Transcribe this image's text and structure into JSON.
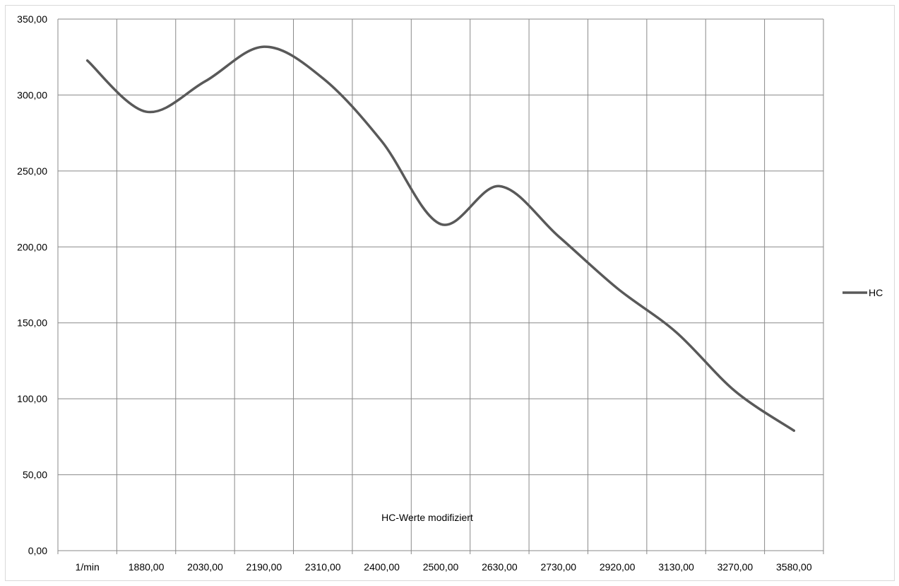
{
  "chart_data": {
    "type": "line",
    "title": "HC-Werte modifiziert",
    "xlabel": "",
    "ylabel": "",
    "categories": [
      "1/min",
      "1880,00",
      "2030,00",
      "2190,00",
      "2310,00",
      "2400,00",
      "2500,00",
      "2630,00",
      "2730,00",
      "2920,00",
      "3130,00",
      "3270,00",
      "3580,00"
    ],
    "series": [
      {
        "name": "HC",
        "values": [
          322.7,
          289,
          309,
          331.8,
          311,
          269.5,
          215,
          240,
          207,
          172.7,
          143.8,
          105,
          79
        ],
        "color": "#595959",
        "smooth": true
      }
    ],
    "ylim": [
      0,
      350
    ],
    "yticks": [
      "0,00",
      "50,00",
      "100,00",
      "150,00",
      "200,00",
      "250,00",
      "300,00",
      "350,00"
    ],
    "grid": true,
    "gridColor": "#898989",
    "legend": "right"
  }
}
